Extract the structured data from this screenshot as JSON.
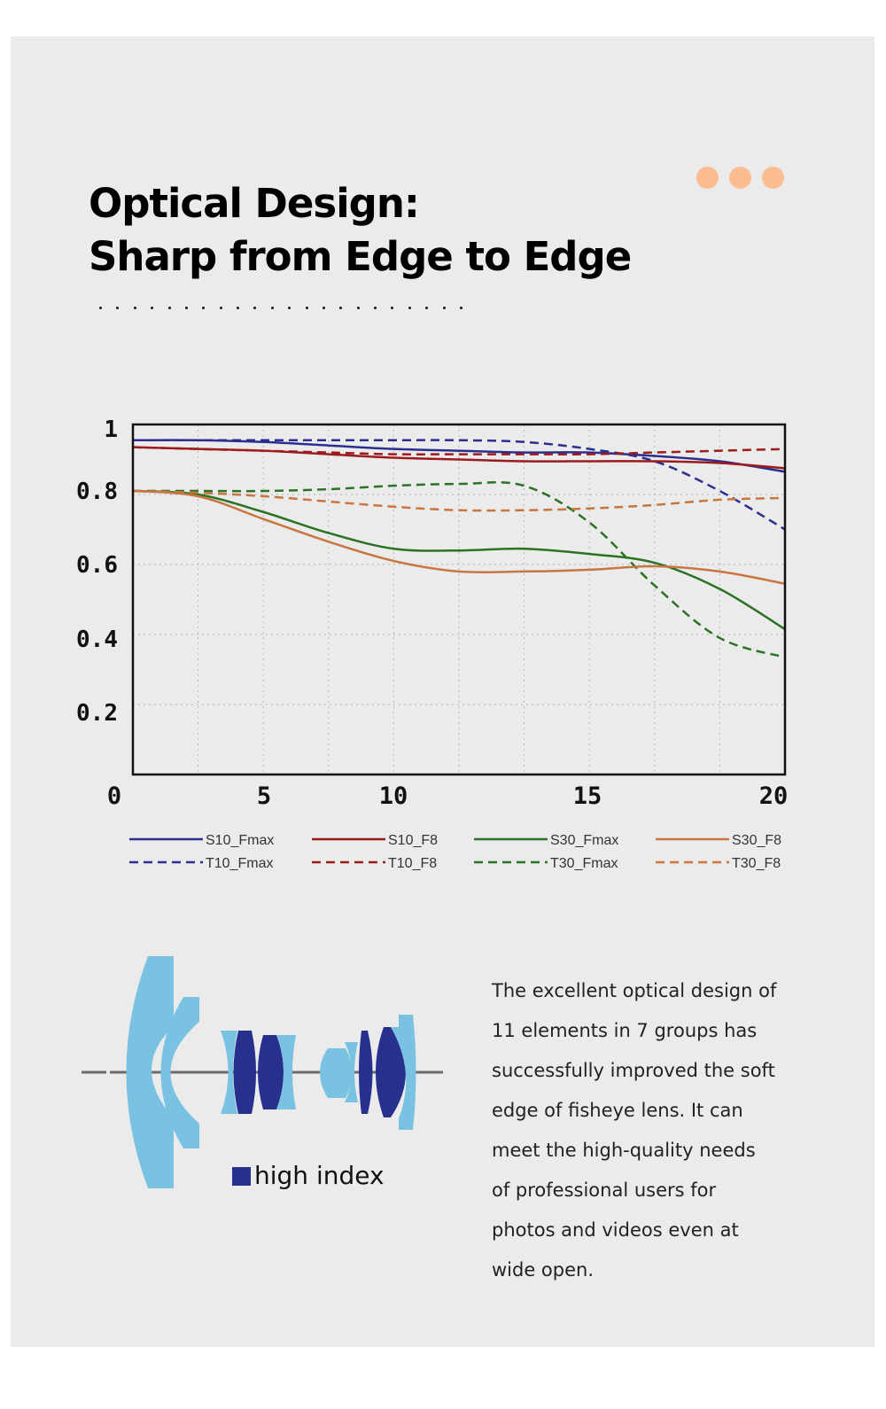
{
  "header": {
    "title_line1": "Optical Design:",
    "title_line2": "Sharp from Edge to Edge",
    "accent_color": "#fdbb90",
    "decorative_dot_count": 3,
    "underline_dot_count": 22
  },
  "chart_data": {
    "type": "line",
    "title": "",
    "xlabel": "",
    "ylabel": "",
    "xlim": [
      0,
      20
    ],
    "ylim": [
      0,
      1
    ],
    "x_tick_labels": [
      "0",
      "5",
      "10",
      "15",
      "20"
    ],
    "y_tick_labels": [
      "1",
      "0.8",
      "0.6",
      "0.4",
      "0.2"
    ],
    "grid": true,
    "legend_position": "bottom",
    "x": [
      0,
      2,
      4,
      6,
      8,
      10,
      12,
      14,
      16,
      18,
      20
    ],
    "series": [
      {
        "name": "S10_Fmax",
        "color": "#2a2f8f",
        "style": "solid",
        "values": [
          0.955,
          0.955,
          0.95,
          0.94,
          0.93,
          0.925,
          0.92,
          0.92,
          0.91,
          0.895,
          0.865
        ]
      },
      {
        "name": "T10_Fmax",
        "color": "#2a2f8f",
        "style": "dashed",
        "values": [
          0.955,
          0.955,
          0.955,
          0.955,
          0.955,
          0.955,
          0.95,
          0.93,
          0.895,
          0.81,
          0.7
        ]
      },
      {
        "name": "S10_F8",
        "color": "#9c1b1f",
        "style": "solid",
        "values": [
          0.935,
          0.93,
          0.925,
          0.915,
          0.905,
          0.9,
          0.895,
          0.895,
          0.895,
          0.89,
          0.875
        ]
      },
      {
        "name": "T10_F8",
        "color": "#9c1b1f",
        "style": "dashed",
        "values": [
          0.935,
          0.93,
          0.925,
          0.92,
          0.915,
          0.915,
          0.915,
          0.915,
          0.92,
          0.925,
          0.93
        ]
      },
      {
        "name": "S30_Fmax",
        "color": "#2b7225",
        "style": "solid",
        "values": [
          0.81,
          0.8,
          0.75,
          0.69,
          0.645,
          0.64,
          0.645,
          0.63,
          0.605,
          0.53,
          0.415
        ]
      },
      {
        "name": "T30_Fmax",
        "color": "#2b7225",
        "style": "dashed",
        "values": [
          0.81,
          0.81,
          0.81,
          0.815,
          0.825,
          0.83,
          0.825,
          0.72,
          0.54,
          0.39,
          0.335
        ]
      },
      {
        "name": "S30_F8",
        "color": "#c87540",
        "style": "solid",
        "values": [
          0.81,
          0.795,
          0.73,
          0.665,
          0.61,
          0.58,
          0.58,
          0.585,
          0.595,
          0.58,
          0.545
        ]
      },
      {
        "name": "T30_F8",
        "color": "#c87540",
        "style": "dashed",
        "values": [
          0.81,
          0.805,
          0.795,
          0.78,
          0.765,
          0.755,
          0.755,
          0.76,
          0.77,
          0.785,
          0.79
        ]
      }
    ]
  },
  "lens_diagram": {
    "legend_label": "high index",
    "high_index_color": "#28308e",
    "standard_color": "#79c2e2",
    "element_count": 11,
    "group_count": 7
  },
  "description": {
    "lines": [
      "The excellent optical design of",
      "11 elements in 7 groups has",
      "successfully improved the soft",
      "edge of fisheye lens. It can",
      "meet the high-quality needs",
      "of professional users for",
      "photos and videos even at",
      "wide open."
    ]
  }
}
